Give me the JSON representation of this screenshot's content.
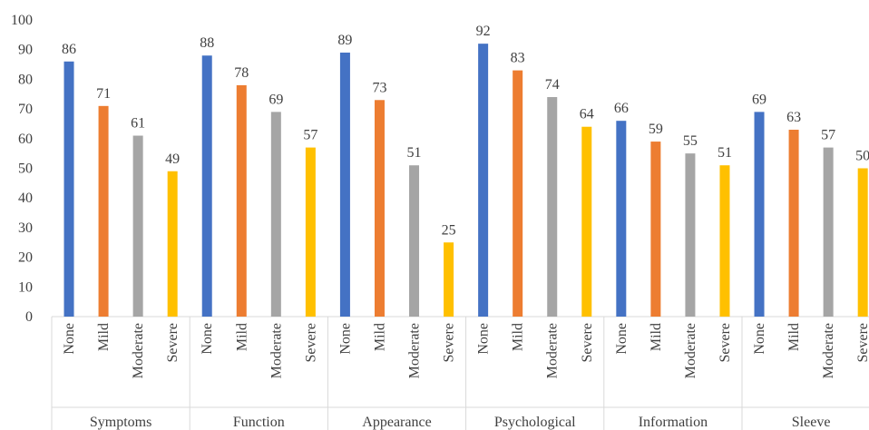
{
  "chart_data": {
    "type": "bar",
    "title": "",
    "xlabel": "",
    "ylabel": "",
    "ylim": [
      0,
      100
    ],
    "yticks": [
      0,
      10,
      20,
      30,
      40,
      50,
      60,
      70,
      80,
      90,
      100
    ],
    "grid": false,
    "legend": "none",
    "subcategories": [
      "None",
      "Mild",
      "Moderate",
      "Severe"
    ],
    "colors": {
      "None": "#4472c4",
      "Mild": "#ed7d31",
      "Moderate": "#a5a5a5",
      "Severe": "#ffc000"
    },
    "groups": [
      {
        "name": "Symptoms",
        "values": [
          86,
          71,
          61,
          49
        ]
      },
      {
        "name": "Function",
        "values": [
          88,
          78,
          69,
          57
        ]
      },
      {
        "name": "Appearance",
        "values": [
          89,
          73,
          51,
          25
        ]
      },
      {
        "name": "Psychological",
        "values": [
          92,
          83,
          74,
          64
        ]
      },
      {
        "name": "Information",
        "values": [
          66,
          59,
          55,
          51
        ]
      },
      {
        "name": "Sleeve",
        "values": [
          69,
          63,
          57,
          50
        ]
      }
    ]
  }
}
